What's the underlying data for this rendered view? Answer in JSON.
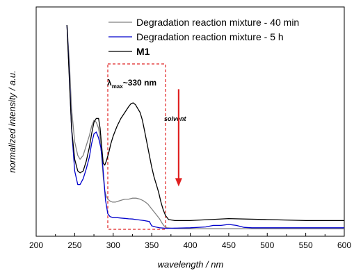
{
  "chart_data": {
    "type": "line",
    "xlabel": "wavelength / nm",
    "ylabel": "normalized intensity / a.u.",
    "xlim": [
      200,
      600
    ],
    "ylim": [
      0,
      1
    ],
    "xticks": [
      "200",
      "250",
      "300",
      "350",
      "400",
      "450",
      "500",
      "550",
      "600"
    ],
    "legend_position": "top-right",
    "series": [
      {
        "name": "Degradation reaction mixture - 40 min",
        "color": "#808080",
        "bold": false,
        "x": [
          240,
          243,
          246,
          250,
          254,
          257,
          261,
          265,
          269,
          272,
          275,
          278,
          281,
          283,
          285,
          287,
          289,
          291,
          293,
          296,
          299,
          303,
          307,
          311,
          315,
          320,
          325,
          330,
          335,
          340,
          345,
          350,
          355,
          360,
          363,
          366,
          370,
          380,
          400,
          450,
          500,
          550,
          600
        ],
        "y": [
          1.05,
          0.87,
          0.62,
          0.45,
          0.38,
          0.36,
          0.38,
          0.43,
          0.48,
          0.53,
          0.56,
          0.55,
          0.52,
          0.47,
          0.38,
          0.27,
          0.2,
          0.17,
          0.155,
          0.145,
          0.14,
          0.14,
          0.145,
          0.15,
          0.155,
          0.155,
          0.16,
          0.16,
          0.155,
          0.145,
          0.13,
          0.105,
          0.08,
          0.055,
          0.035,
          0.018,
          0.008,
          0.004,
          0.003,
          0.003,
          0.003,
          0.003,
          0.003
        ]
      },
      {
        "name": "Degradation reaction mixture - 5 h",
        "color": "#0000cc",
        "bold": false,
        "x": [
          240,
          243,
          246,
          250,
          254,
          257,
          261,
          265,
          269,
          272,
          275,
          278,
          281,
          284,
          286,
          288,
          290,
          293,
          296,
          300,
          305,
          310,
          315,
          320,
          325,
          330,
          340,
          347,
          350,
          355,
          360,
          370,
          380,
          400,
          420,
          430,
          440,
          450,
          460,
          470,
          480,
          500,
          550,
          600
        ],
        "y": [
          1.05,
          0.8,
          0.52,
          0.3,
          0.23,
          0.23,
          0.26,
          0.31,
          0.37,
          0.44,
          0.49,
          0.5,
          0.47,
          0.42,
          0.35,
          0.25,
          0.15,
          0.08,
          0.065,
          0.06,
          0.06,
          0.058,
          0.056,
          0.054,
          0.053,
          0.05,
          0.045,
          0.04,
          0.018,
          0.012,
          0.008,
          0.005,
          0.006,
          0.008,
          0.012,
          0.02,
          0.02,
          0.025,
          0.02,
          0.01,
          0.008,
          0.008,
          0.008,
          0.008
        ]
      },
      {
        "name": "M1",
        "color": "#000000",
        "bold": true,
        "x": [
          240,
          243,
          246,
          250,
          254,
          257,
          261,
          265,
          269,
          272,
          275,
          278,
          281,
          283,
          285,
          287,
          289,
          291,
          294,
          297,
          300,
          305,
          310,
          315,
          320,
          323,
          326,
          329,
          332,
          335,
          338,
          341,
          344,
          347,
          350,
          353,
          356,
          359,
          362,
          365,
          368,
          372,
          380,
          400,
          450,
          500,
          550,
          600
        ],
        "y": [
          1.05,
          0.78,
          0.52,
          0.36,
          0.3,
          0.29,
          0.3,
          0.35,
          0.42,
          0.49,
          0.55,
          0.57,
          0.57,
          0.52,
          0.43,
          0.34,
          0.33,
          0.35,
          0.39,
          0.44,
          0.48,
          0.53,
          0.57,
          0.6,
          0.63,
          0.645,
          0.65,
          0.64,
          0.62,
          0.6,
          0.56,
          0.5,
          0.44,
          0.38,
          0.32,
          0.27,
          0.23,
          0.19,
          0.14,
          0.1,
          0.07,
          0.05,
          0.045,
          0.045,
          0.055,
          0.05,
          0.045,
          0.045
        ]
      }
    ],
    "annotations": {
      "solvent": "solvent",
      "lambda_symbol": "λ",
      "lambda_subscript": "max",
      "lambda_value": "~330 nm"
    },
    "highlight_box": {
      "x": [
        293,
        368
      ],
      "y": [
        0.0,
        0.85
      ]
    },
    "arrow": {
      "x": 385,
      "y_from": 0.72,
      "y_to": 0.22
    }
  }
}
